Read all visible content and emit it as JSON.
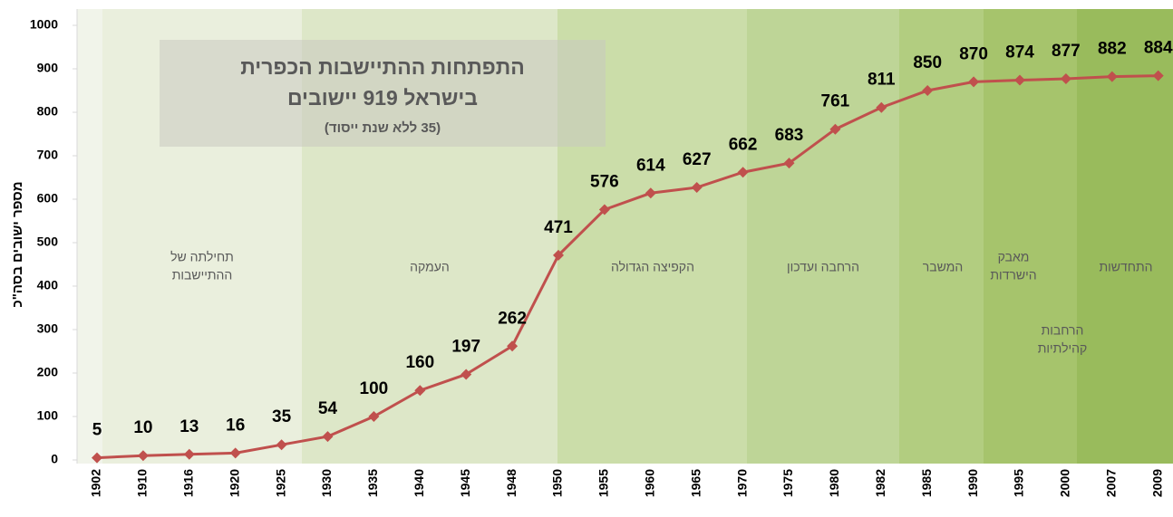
{
  "chart_data": {
    "type": "line",
    "title": [
      "התפתחות ההתיישבות הכפרית",
      "בישראל 919 יישובים",
      "(35 ללא שנת ייסוד)"
    ],
    "y_label": "מספר ישובים בסה\"כ",
    "categories": [
      "1902",
      "1910",
      "1916",
      "1920",
      "1925",
      "1930",
      "1935",
      "1940",
      "1945",
      "1948",
      "1950",
      "1955",
      "1960",
      "1965",
      "1970",
      "1975",
      "1980",
      "1982",
      "1985",
      "1990",
      "1995",
      "2000",
      "2007",
      "2009"
    ],
    "series": [
      {
        "name": "ישובים",
        "color": "#c0504d",
        "values": [
          5,
          10,
          13,
          16,
          35,
          54,
          100,
          160,
          197,
          262,
          471,
          576,
          614,
          627,
          662,
          683,
          761,
          811,
          850,
          870,
          874,
          877,
          882,
          884
        ]
      }
    ],
    "ylim": [
      0,
      1000
    ],
    "yticks": [
      0,
      100,
      200,
      300,
      400,
      500,
      600,
      700,
      800,
      900,
      1000
    ],
    "grid": false,
    "band_colors": [
      "#eaefdd",
      "#dde7c8",
      "#cbdda9",
      "#bed597",
      "#b2cd80",
      "#a6c46c",
      "#99bb5c"
    ],
    "periods": [
      {
        "lines": [
          "תחילתה של",
          "ההתיישבות"
        ]
      },
      {
        "lines": [
          "העמקה"
        ]
      },
      {
        "lines": [
          "הקפיצה  הגדולה"
        ]
      },
      {
        "lines": [
          "הרחבה  ועדכון"
        ]
      },
      {
        "lines": [
          "המשבר"
        ]
      },
      {
        "lines": [
          "מאבק",
          "הישרדות"
        ]
      },
      {
        "lines": [
          "הרחבות",
          "קהילתיות"
        ]
      },
      {
        "lines": [
          "התחדשות"
        ]
      }
    ]
  }
}
